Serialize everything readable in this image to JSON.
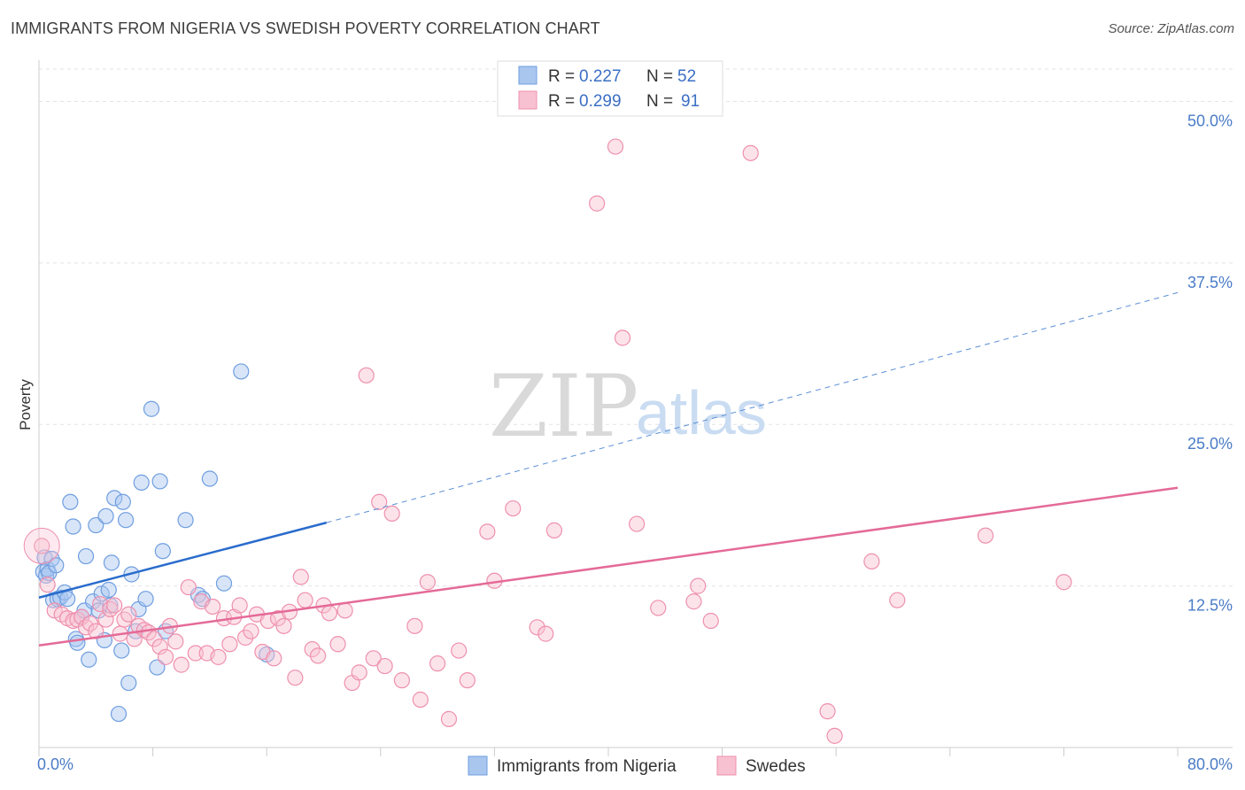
{
  "header": {
    "title": "IMMIGRANTS FROM NIGERIA VS SWEDISH POVERTY CORRELATION CHART",
    "source": "Source: ZipAtlas.com"
  },
  "watermark": {
    "zip": "ZIP",
    "atlas": "atlas"
  },
  "legend": {
    "entries": [
      {
        "r_label": "R = ",
        "r_value": "0.227",
        "n_label": "N = ",
        "n_value": "52",
        "color": "#a9c6ef",
        "stroke": "#6f9ee0"
      },
      {
        "r_label": "R = ",
        "r_value": "0.299",
        "n_label": "N = ",
        "n_value": "91",
        "color": "#f8c1d1",
        "stroke": "#ee90ae"
      }
    ]
  },
  "chart_data": {
    "type": "scatter",
    "title": "IMMIGRANTS FROM NIGERIA VS SWEDISH POVERTY CORRELATION CHART",
    "xlabel": "",
    "ylabel": "Poverty",
    "xlim": [
      0,
      80
    ],
    "ylim": [
      0,
      52.5
    ],
    "x_tick_labels": [
      "0.0%",
      "80.0%"
    ],
    "y_ticks": [
      12.5,
      25.0,
      37.5,
      50.0
    ],
    "y_tick_labels": [
      "12.5%",
      "25.0%",
      "37.5%",
      "50.0%"
    ],
    "grid": true,
    "legend_position": "top-center",
    "series": [
      {
        "name": "Immigrants from Nigeria",
        "color": "#6f9ee0",
        "fill": "#a9c6ef",
        "trend": {
          "x0": 0,
          "y0": 11.6,
          "x1": 20.2,
          "y1": 17.4,
          "dash_to_x": 80,
          "dash_to_y": 35.2
        },
        "points": [
          [
            0.3,
            13.6
          ],
          [
            0.4,
            14.7
          ],
          [
            0.5,
            13.3
          ],
          [
            0.6,
            13.8
          ],
          [
            0.7,
            13.5
          ],
          [
            0.9,
            14.6
          ],
          [
            1.0,
            11.4
          ],
          [
            1.2,
            14.1
          ],
          [
            1.3,
            11.5
          ],
          [
            1.5,
            11.6
          ],
          [
            1.8,
            12.0
          ],
          [
            2.0,
            11.5
          ],
          [
            2.2,
            19.0
          ],
          [
            2.4,
            17.1
          ],
          [
            2.6,
            8.4
          ],
          [
            2.7,
            8.1
          ],
          [
            3.0,
            10.1
          ],
          [
            3.2,
            10.6
          ],
          [
            3.3,
            14.8
          ],
          [
            3.5,
            6.8
          ],
          [
            3.8,
            11.3
          ],
          [
            4.0,
            17.2
          ],
          [
            4.2,
            10.6
          ],
          [
            4.4,
            11.9
          ],
          [
            4.6,
            8.3
          ],
          [
            4.7,
            17.9
          ],
          [
            4.9,
            12.2
          ],
          [
            5.0,
            11.0
          ],
          [
            5.1,
            14.3
          ],
          [
            5.3,
            19.3
          ],
          [
            5.6,
            2.6
          ],
          [
            5.8,
            7.5
          ],
          [
            5.9,
            19.0
          ],
          [
            6.1,
            17.6
          ],
          [
            6.3,
            5.0
          ],
          [
            6.5,
            13.4
          ],
          [
            6.8,
            9.0
          ],
          [
            7.0,
            10.7
          ],
          [
            7.2,
            20.5
          ],
          [
            7.5,
            11.5
          ],
          [
            7.9,
            26.2
          ],
          [
            8.3,
            6.2
          ],
          [
            8.5,
            20.6
          ],
          [
            8.7,
            15.2
          ],
          [
            8.9,
            9.0
          ],
          [
            10.3,
            17.6
          ],
          [
            11.2,
            11.8
          ],
          [
            11.5,
            11.5
          ],
          [
            12.0,
            20.8
          ],
          [
            13.0,
            12.7
          ],
          [
            14.2,
            29.1
          ],
          [
            16.0,
            7.2
          ]
        ]
      },
      {
        "name": "Swedes",
        "color": "#ee90ae",
        "fill": "#f8c1d1",
        "trend": {
          "x0": 0,
          "y0": 7.9,
          "x1": 80,
          "y1": 20.1
        },
        "points": [
          [
            0.2,
            15.6
          ],
          [
            0.6,
            12.6
          ],
          [
            1.1,
            10.6
          ],
          [
            1.6,
            10.3
          ],
          [
            2.0,
            10.0
          ],
          [
            2.4,
            9.8
          ],
          [
            2.7,
            9.9
          ],
          [
            3.0,
            10.1
          ],
          [
            3.3,
            9.3
          ],
          [
            3.6,
            9.6
          ],
          [
            4.0,
            9.0
          ],
          [
            4.3,
            11.1
          ],
          [
            4.7,
            9.9
          ],
          [
            5.0,
            10.7
          ],
          [
            5.3,
            11.0
          ],
          [
            5.7,
            8.8
          ],
          [
            6.0,
            9.9
          ],
          [
            6.3,
            10.3
          ],
          [
            6.7,
            8.4
          ],
          [
            7.0,
            9.4
          ],
          [
            7.4,
            9.1
          ],
          [
            7.7,
            8.9
          ],
          [
            8.1,
            8.4
          ],
          [
            8.5,
            7.8
          ],
          [
            8.9,
            7.0
          ],
          [
            9.2,
            9.4
          ],
          [
            9.6,
            8.2
          ],
          [
            10.0,
            6.4
          ],
          [
            10.5,
            12.4
          ],
          [
            11.0,
            7.3
          ],
          [
            11.4,
            11.3
          ],
          [
            11.8,
            7.3
          ],
          [
            12.2,
            10.9
          ],
          [
            12.6,
            7.0
          ],
          [
            13.0,
            10.0
          ],
          [
            13.4,
            8.0
          ],
          [
            13.7,
            10.1
          ],
          [
            14.1,
            11.0
          ],
          [
            14.5,
            8.5
          ],
          [
            14.9,
            9.0
          ],
          [
            15.3,
            10.3
          ],
          [
            15.7,
            7.4
          ],
          [
            16.1,
            9.8
          ],
          [
            16.5,
            6.9
          ],
          [
            16.8,
            10.0
          ],
          [
            17.2,
            9.4
          ],
          [
            17.6,
            10.5
          ],
          [
            18.0,
            5.4
          ],
          [
            18.4,
            13.2
          ],
          [
            18.7,
            11.4
          ],
          [
            19.2,
            7.6
          ],
          [
            19.6,
            7.1
          ],
          [
            20.0,
            11.0
          ],
          [
            20.4,
            10.4
          ],
          [
            21.0,
            8.0
          ],
          [
            21.5,
            10.6
          ],
          [
            22.0,
            5.0
          ],
          [
            22.5,
            5.8
          ],
          [
            23.0,
            28.8
          ],
          [
            23.5,
            6.9
          ],
          [
            23.9,
            19.0
          ],
          [
            24.3,
            6.3
          ],
          [
            24.8,
            18.1
          ],
          [
            25.5,
            5.2
          ],
          [
            26.4,
            9.4
          ],
          [
            26.8,
            3.7
          ],
          [
            27.3,
            12.8
          ],
          [
            28.0,
            6.5
          ],
          [
            28.8,
            2.2
          ],
          [
            29.5,
            7.5
          ],
          [
            30.1,
            5.2
          ],
          [
            31.5,
            16.7
          ],
          [
            32.0,
            12.9
          ],
          [
            33.3,
            18.5
          ],
          [
            35.0,
            9.3
          ],
          [
            35.6,
            8.8
          ],
          [
            36.2,
            16.8
          ],
          [
            39.2,
            42.1
          ],
          [
            40.5,
            46.5
          ],
          [
            41.0,
            31.7
          ],
          [
            42.0,
            17.3
          ],
          [
            43.5,
            10.8
          ],
          [
            46.0,
            11.3
          ],
          [
            46.3,
            12.5
          ],
          [
            47.2,
            9.8
          ],
          [
            50.0,
            46.0
          ],
          [
            55.4,
            2.8
          ],
          [
            55.9,
            0.9
          ],
          [
            58.5,
            14.4
          ],
          [
            60.3,
            11.4
          ],
          [
            66.5,
            16.4
          ],
          [
            72.0,
            12.8
          ]
        ]
      }
    ]
  }
}
